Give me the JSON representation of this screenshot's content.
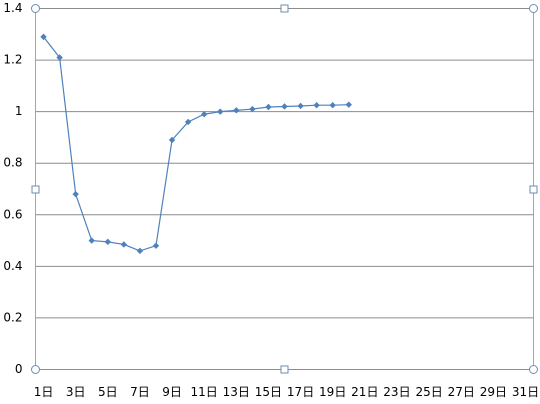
{
  "chart_data": {
    "type": "line",
    "categories": [
      "1日",
      null,
      "3日",
      null,
      "5日",
      null,
      "7日",
      null,
      "9日",
      null,
      "11日",
      null,
      "13日",
      null,
      "15日",
      null,
      "17日",
      null,
      "19日",
      null,
      "21日",
      null,
      "23日",
      null,
      "25日",
      null,
      "27日",
      null,
      "29日",
      null,
      "31日"
    ],
    "series": [
      {
        "color": "#4f81bd",
        "values": [
          1.29,
          1.21,
          0.68,
          0.5,
          0.495,
          0.485,
          0.46,
          0.48,
          0.89,
          0.96,
          0.99,
          1.0,
          1.005,
          1.01,
          1.018,
          1.02,
          1.022,
          1.025,
          1.025,
          1.027,
          null,
          null,
          null,
          null,
          null,
          null,
          null,
          null,
          null,
          null,
          null
        ]
      }
    ],
    "ylim": [
      0,
      1.4
    ],
    "yticks": [
      0,
      0.2,
      0.4,
      0.6,
      0.8,
      1,
      1.2,
      1.4
    ],
    "grid": true
  }
}
